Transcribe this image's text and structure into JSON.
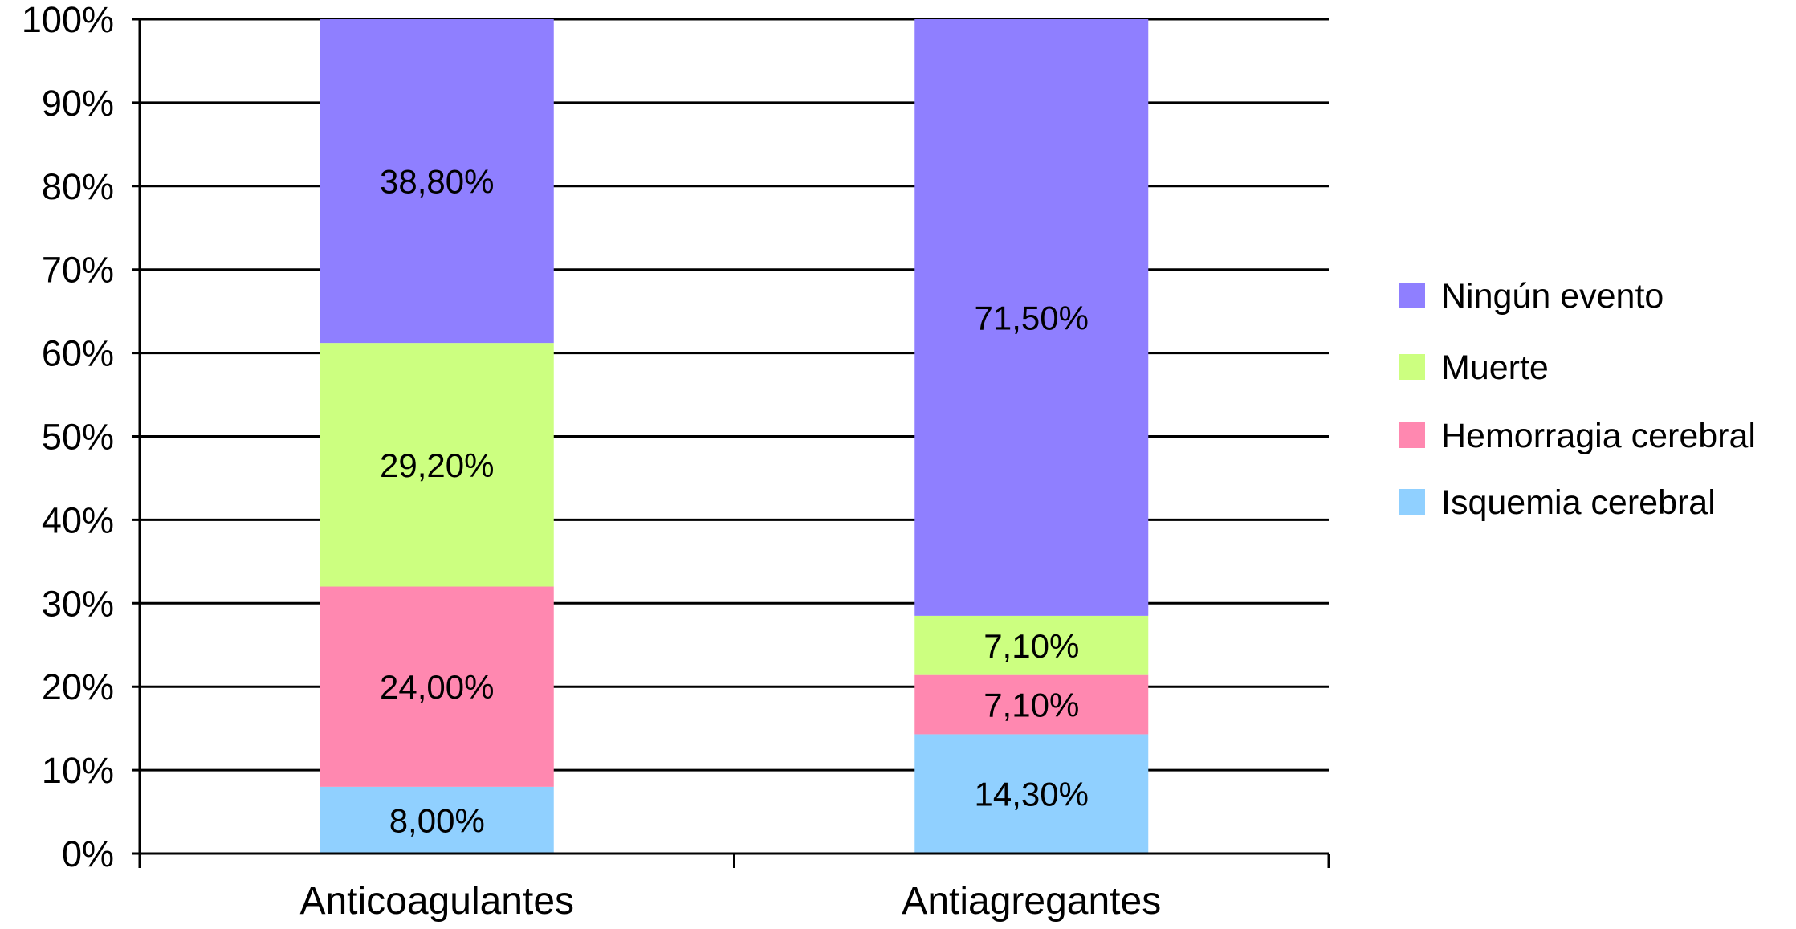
{
  "chart_data": {
    "type": "bar",
    "stacked": true,
    "title": "",
    "xlabel": "",
    "ylabel": "",
    "ylim": [
      0,
      100
    ],
    "yticks": [
      "0%",
      "10%",
      "20%",
      "30%",
      "40%",
      "50%",
      "60%",
      "70%",
      "80%",
      "90%",
      "100%"
    ],
    "grid": true,
    "legend_position": "right",
    "categories": [
      "Anticoagulantes",
      "Antiagregantes"
    ],
    "series": [
      {
        "name": "Isquemia cerebral",
        "color": "#90d0ff",
        "values": [
          8.0,
          14.3
        ],
        "labels": [
          "8,00%",
          "14,30%"
        ]
      },
      {
        "name": "Hemorragia cerebral",
        "color": "#ff88b0",
        "values": [
          24.0,
          7.1
        ],
        "labels": [
          "24,00%",
          "7,10%"
        ]
      },
      {
        "name": "Muerte",
        "color": "#ccff80",
        "values": [
          29.2,
          7.1
        ],
        "labels": [
          "29,20%",
          "7,10%"
        ]
      },
      {
        "name": "Ningún evento",
        "color": "#8f7fff",
        "values": [
          38.8,
          71.5
        ],
        "labels": [
          "38,80%",
          "71,50%"
        ]
      }
    ]
  }
}
